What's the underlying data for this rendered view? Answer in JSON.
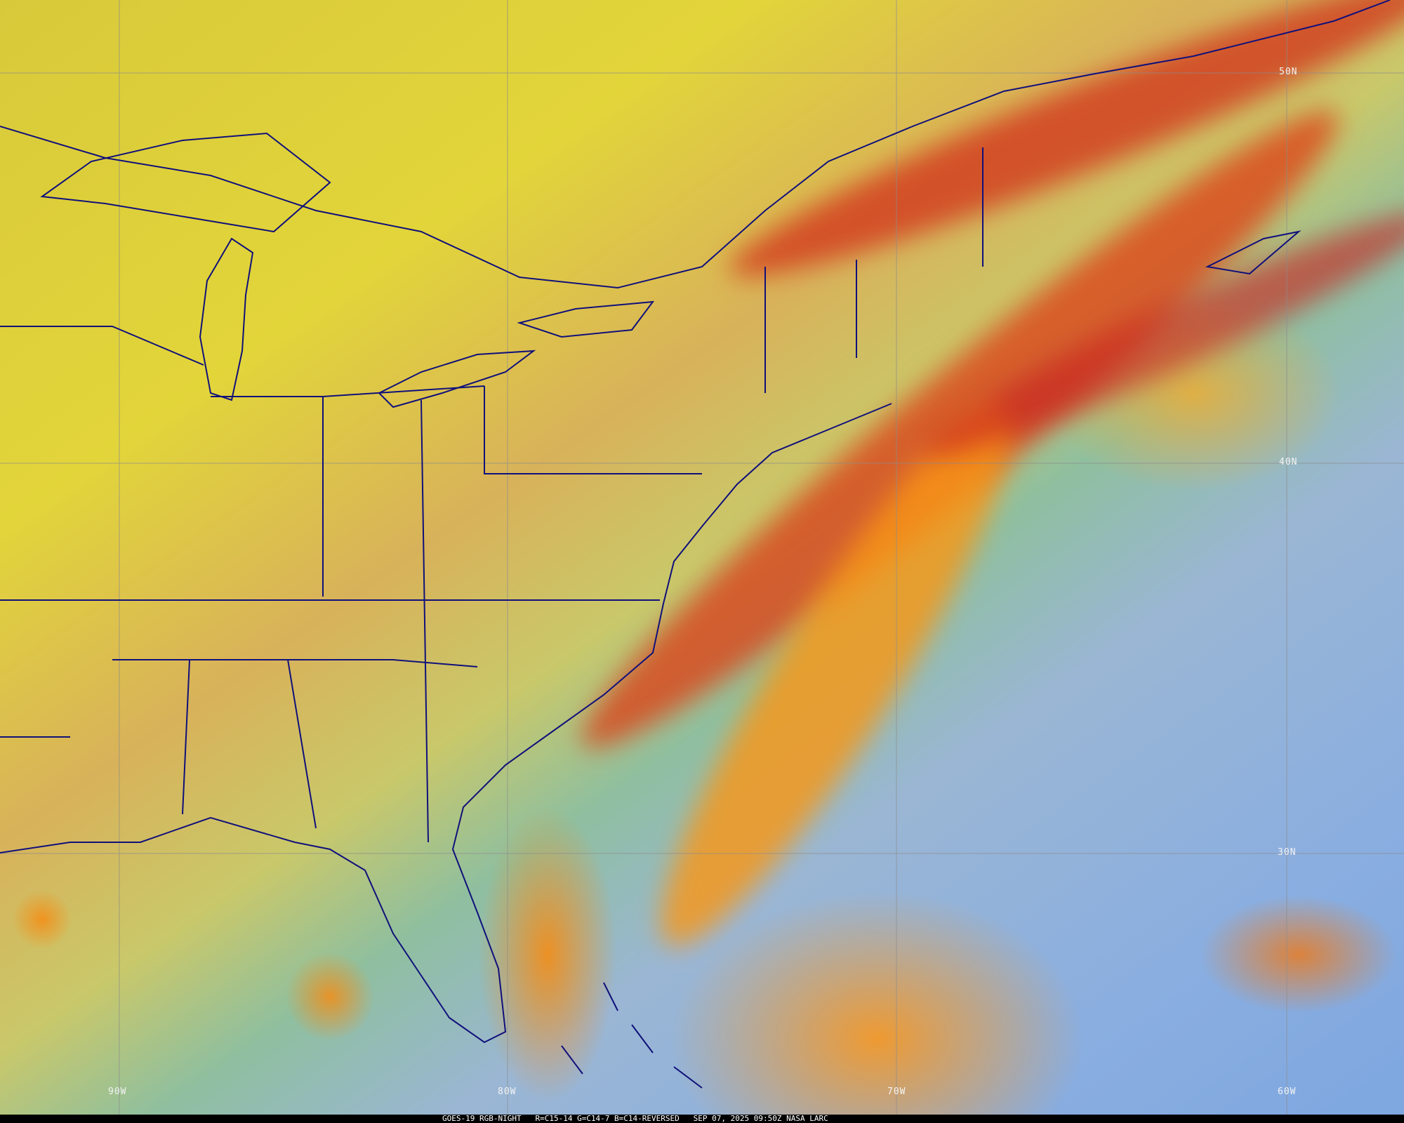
{
  "map": {
    "grid_labels": {
      "lat": [
        "50N",
        "40N",
        "30N"
      ],
      "lon": [
        "90W",
        "80W",
        "70W",
        "60W"
      ]
    },
    "colors": {
      "gridline": "#8c8c8c",
      "borders": "#10107a",
      "cold_cloud": "#f59a1a",
      "frontal_band": "#c8141a",
      "clear_ocean": "#86aee0",
      "land_dry": "#d8c93a"
    }
  },
  "caption": {
    "satellite": "GOES-19",
    "product": "RGB-NIGHT",
    "recipe": "R=C15-14 G=C14-7 B=C14-REVERSED",
    "datetime": "SEP 07, 2025 09:50Z",
    "source": "NASA LARC"
  }
}
